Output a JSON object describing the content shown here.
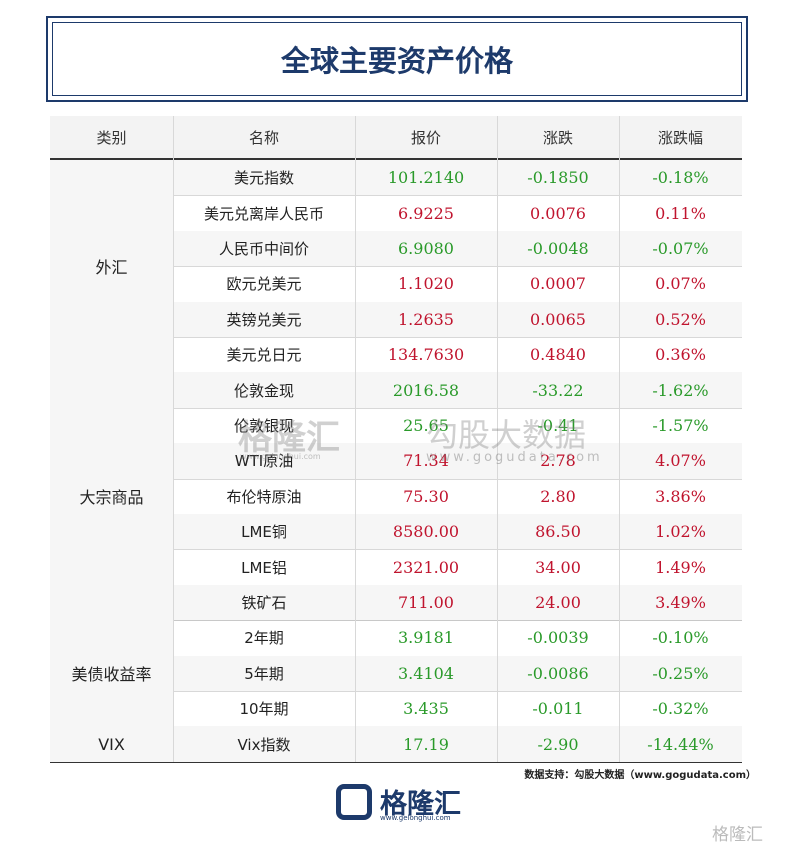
{
  "title": "全球主要资产价格",
  "table": {
    "header": [
      "类别",
      "名称",
      "报价",
      "涨跌",
      "涨跌幅"
    ],
    "groups": [
      {
        "category": "外汇",
        "rows": [
          [
            "美元指数",
            "101.2140",
            "-0.1850",
            "-0.18%"
          ],
          [
            "美元兑离岸人民币",
            "6.9225",
            "0.0076",
            "0.11%"
          ],
          [
            "人民币中间价",
            "6.9080",
            "-0.0048",
            "-0.07%"
          ],
          [
            "欧元兑美元",
            "1.1020",
            "0.0007",
            "0.07%"
          ],
          [
            "英镑兑美元",
            "1.2635",
            "0.0065",
            "0.52%"
          ],
          [
            "美元兑日元",
            "134.7630",
            "0.4840",
            "0.36%"
          ]
        ]
      },
      {
        "category": "大宗商品",
        "rows": [
          [
            "伦敦金现",
            "2016.58",
            "-33.22",
            "-1.62%"
          ],
          [
            "伦敦银现",
            "25.65",
            "-0.41",
            "-1.57%"
          ],
          [
            "WTI原油",
            "71.34",
            "2.78",
            "4.07%"
          ],
          [
            "布伦特原油",
            "75.30",
            "2.80",
            "3.86%"
          ],
          [
            "LME铜",
            "8580.00",
            "86.50",
            "1.02%"
          ],
          [
            "LME铝",
            "2321.00",
            "34.00",
            "1.49%"
          ],
          [
            "铁矿石",
            "711.00",
            "24.00",
            "3.49%"
          ]
        ]
      },
      {
        "category": "美债收益率",
        "rows": [
          [
            "2年期",
            "3.9181",
            "-0.0039",
            "-0.10%"
          ],
          [
            "5年期",
            "3.4104",
            "-0.0086",
            "-0.25%"
          ],
          [
            "10年期",
            "3.435",
            "-0.011",
            "-0.32%"
          ]
        ]
      },
      {
        "category": "VIX",
        "rows": [
          [
            "Vix指数",
            "17.19",
            "-2.90",
            "-14.44%"
          ]
        ]
      }
    ]
  },
  "source": "数据支持：勾股大数据（www.gogudata.com）",
  "logo": {
    "name": "格隆汇",
    "url": "www.gelonghui.com"
  },
  "watermark": {
    "left": "格隆汇",
    "left_url": "www.gelonghui.com",
    "right": "勾股大数据",
    "right_url": "www.gogudata.com",
    "corner": "格隆汇"
  }
}
